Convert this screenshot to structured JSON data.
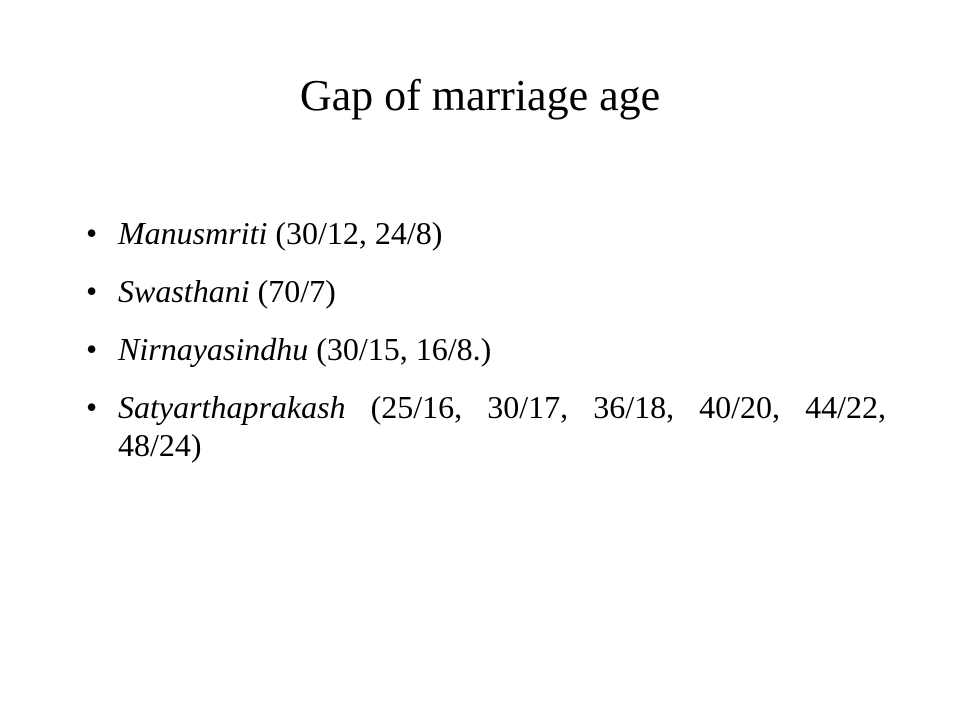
{
  "slide": {
    "title": "Gap of marriage age",
    "bullet_symbol": "•",
    "items": [
      {
        "work": "Manusmriti",
        "ages": " (30/12, 24/8)"
      },
      {
        "work": "Swasthani",
        "ages": " (70/7)"
      },
      {
        "work": "Nirnayasindhu",
        "ages": " (30/15, 16/8.)"
      },
      {
        "work": "Satyarthaprakash",
        "ages": " (25/16, 30/17, 36/18, 40/20, 44/22, 48/24)"
      }
    ]
  }
}
